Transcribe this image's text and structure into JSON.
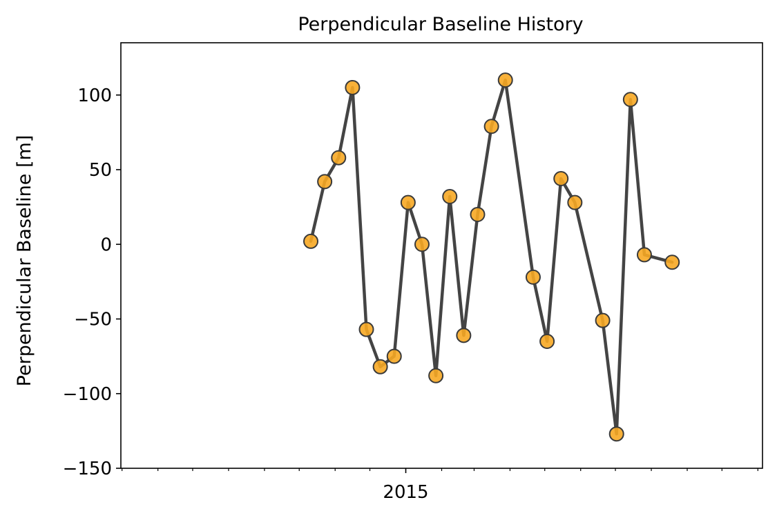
{
  "chart_data": {
    "type": "line",
    "title": "Perpendicular Baseline History",
    "xlabel": "",
    "ylabel": "Perpendicular Baseline [m]",
    "ylim": [
      -150,
      135
    ],
    "xlim": [
      "2014-04-30",
      "2015-11-05"
    ],
    "x_tick_labels": [
      {
        "date": "2015-01-01",
        "label": "2015"
      }
    ],
    "x_minor_ticks": [
      "2014-05-01",
      "2014-06-01",
      "2014-07-01",
      "2014-08-01",
      "2014-09-01",
      "2014-10-01",
      "2014-11-01",
      "2014-12-01",
      "2015-02-01",
      "2015-03-01",
      "2015-04-01",
      "2015-05-01",
      "2015-06-01",
      "2015-07-01",
      "2015-08-01",
      "2015-09-01",
      "2015-10-01",
      "2015-11-01"
    ],
    "y_ticks": [
      100,
      50,
      0,
      -50,
      -100,
      -150
    ],
    "y_tick_labels": [
      "100",
      "50",
      "0",
      "−50",
      "−100",
      "−150"
    ],
    "grid": false,
    "line_color": "#444444",
    "marker_face_color": "#f7a823",
    "marker_edge_color": "#3a3a3a",
    "series": [
      {
        "points": [
          {
            "x": "2014-10-11",
            "y": 2
          },
          {
            "x": "2014-10-23",
            "y": 42
          },
          {
            "x": "2014-11-04",
            "y": 58
          },
          {
            "x": "2014-11-16",
            "y": 105
          },
          {
            "x": "2014-11-28",
            "y": -57
          },
          {
            "x": "2014-12-10",
            "y": -82
          },
          {
            "x": "2014-12-22",
            "y": -75
          },
          {
            "x": "2015-01-03",
            "y": 28
          },
          {
            "x": "2015-01-15",
            "y": 0
          },
          {
            "x": "2015-01-27",
            "y": -88
          },
          {
            "x": "2015-02-08",
            "y": 32
          },
          {
            "x": "2015-02-20",
            "y": -61
          },
          {
            "x": "2015-03-04",
            "y": 20
          },
          {
            "x": "2015-03-16",
            "y": 79
          },
          {
            "x": "2015-03-28",
            "y": 110
          },
          {
            "x": "2015-04-21",
            "y": -22
          },
          {
            "x": "2015-05-03",
            "y": -65
          },
          {
            "x": "2015-05-15",
            "y": 44
          },
          {
            "x": "2015-05-27",
            "y": 28
          },
          {
            "x": "2015-06-20",
            "y": -51
          },
          {
            "x": "2015-07-02",
            "y": -127
          },
          {
            "x": "2015-07-14",
            "y": 97
          },
          {
            "x": "2015-07-26",
            "y": -7
          },
          {
            "x": "2015-08-19",
            "y": -12
          }
        ]
      }
    ]
  }
}
